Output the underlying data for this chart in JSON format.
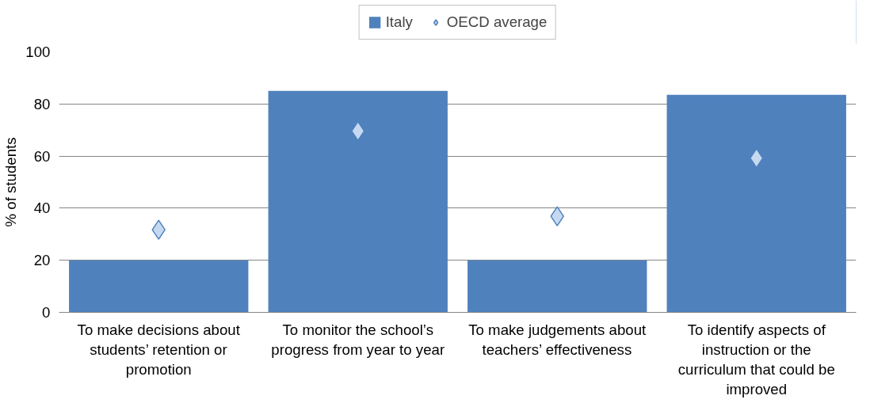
{
  "chart_data": {
    "type": "bar",
    "categories": [
      "To make decisions about students’ retention or promotion",
      "To monitor the school’s progress from year to year",
      "To make judgements about teachers’ effectiveness",
      "To identify aspects of instruction or the curriculum that could be improved"
    ],
    "series": [
      {
        "name": "Italy",
        "color": "#4f81bd",
        "values": [
          20,
          85,
          20,
          83.5
        ]
      },
      {
        "name": "OECD average",
        "type": "scatter",
        "marker": "diamond",
        "color": "#c6d9f1",
        "values": [
          31.7,
          69.6,
          36.9,
          59.2
        ]
      }
    ],
    "ylabel": "% of students",
    "ylim": [
      0,
      100
    ],
    "yticks": [
      0,
      20,
      40,
      60,
      80,
      100
    ],
    "grid": "y",
    "legend": "top"
  }
}
